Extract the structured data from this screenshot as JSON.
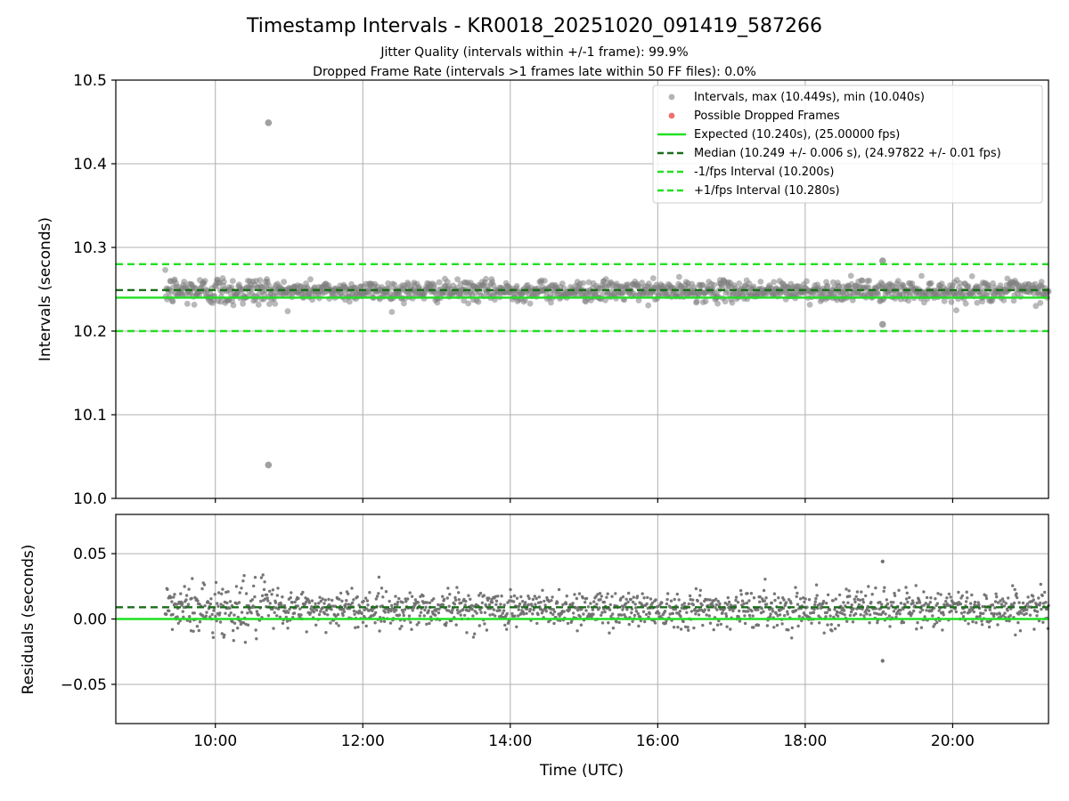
{
  "figure": {
    "title": "Timestamp Intervals - KR0018_20251020_091419_587266",
    "subtitle_lines": [
      "Jitter Quality (intervals within +/-1 frame): 99.9%",
      "Dropped Frame Rate (intervals >1 frames late within 50 FF files): 0.0%"
    ],
    "xlabel": "Time (UTC)"
  },
  "chart_data": [
    {
      "type": "scatter",
      "panel": "intervals",
      "ylabel": "Intervals (seconds)",
      "xlim_hours": [
        8.65,
        21.3
      ],
      "ylim": [
        10.0,
        10.5
      ],
      "yticks": [
        10.0,
        10.1,
        10.2,
        10.3,
        10.4,
        10.5
      ],
      "ytick_labels": [
        "10.0",
        "10.1",
        "10.2",
        "10.3",
        "10.4",
        "10.5"
      ],
      "grid": true,
      "legend_placement": "top-right",
      "data_range_hours": [
        9.32,
        21.3
      ],
      "series": [
        {
          "name": "Intervals, max (10.449s), min (10.040s)",
          "kind": "scatter",
          "color": "#808080",
          "center": 10.248,
          "spread": 0.006,
          "outliers": [
            {
              "x_hours": 10.72,
              "y": 10.449
            },
            {
              "x_hours": 10.72,
              "y": 10.04
            },
            {
              "x_hours": 19.05,
              "y": 10.284
            },
            {
              "x_hours": 19.05,
              "y": 10.208
            }
          ]
        },
        {
          "name": "Possible Dropped Frames",
          "kind": "scatter",
          "color": "#f06060",
          "values": []
        },
        {
          "name": "Expected (10.240s), (25.00000 fps)",
          "kind": "hline",
          "y": 10.24,
          "color": "#22e022",
          "dash": "solid"
        },
        {
          "name": "Median (10.249 +/- 0.006 s), (24.97822 +/- 0.01 fps)",
          "kind": "hline",
          "y": 10.249,
          "color": "#1a6e1a",
          "dash": "dashed"
        },
        {
          "name": "-1/fps Interval (10.200s)",
          "kind": "hline",
          "y": 10.2,
          "color": "#22e022",
          "dash": "dashed"
        },
        {
          "name": "+1/fps Interval (10.280s)",
          "kind": "hline",
          "y": 10.28,
          "color": "#22e022",
          "dash": "dashed"
        }
      ]
    },
    {
      "type": "scatter",
      "panel": "residuals",
      "ylabel": "Residuals (seconds)",
      "xlim_hours": [
        8.65,
        21.3
      ],
      "ylim": [
        -0.08,
        0.08
      ],
      "yticks": [
        -0.05,
        0.0,
        0.05
      ],
      "ytick_labels": [
        "−0.05",
        "0.00",
        "0.05"
      ],
      "xticks_hours": [
        10,
        12,
        14,
        16,
        18,
        20
      ],
      "xtick_labels": [
        "10:00",
        "12:00",
        "14:00",
        "16:00",
        "18:00",
        "20:00"
      ],
      "grid": true,
      "series": [
        {
          "kind": "scatter",
          "color": "#707070",
          "center": 0.008,
          "spread": 0.007,
          "outliers": [
            {
              "x_hours": 19.05,
              "y": 0.044
            },
            {
              "x_hours": 19.05,
              "y": -0.032
            }
          ]
        },
        {
          "kind": "hline",
          "y": 0.0,
          "color": "#22e022",
          "dash": "solid"
        },
        {
          "kind": "hline",
          "y": 0.009,
          "color": "#1a6e1a",
          "dash": "dashed"
        }
      ]
    }
  ]
}
